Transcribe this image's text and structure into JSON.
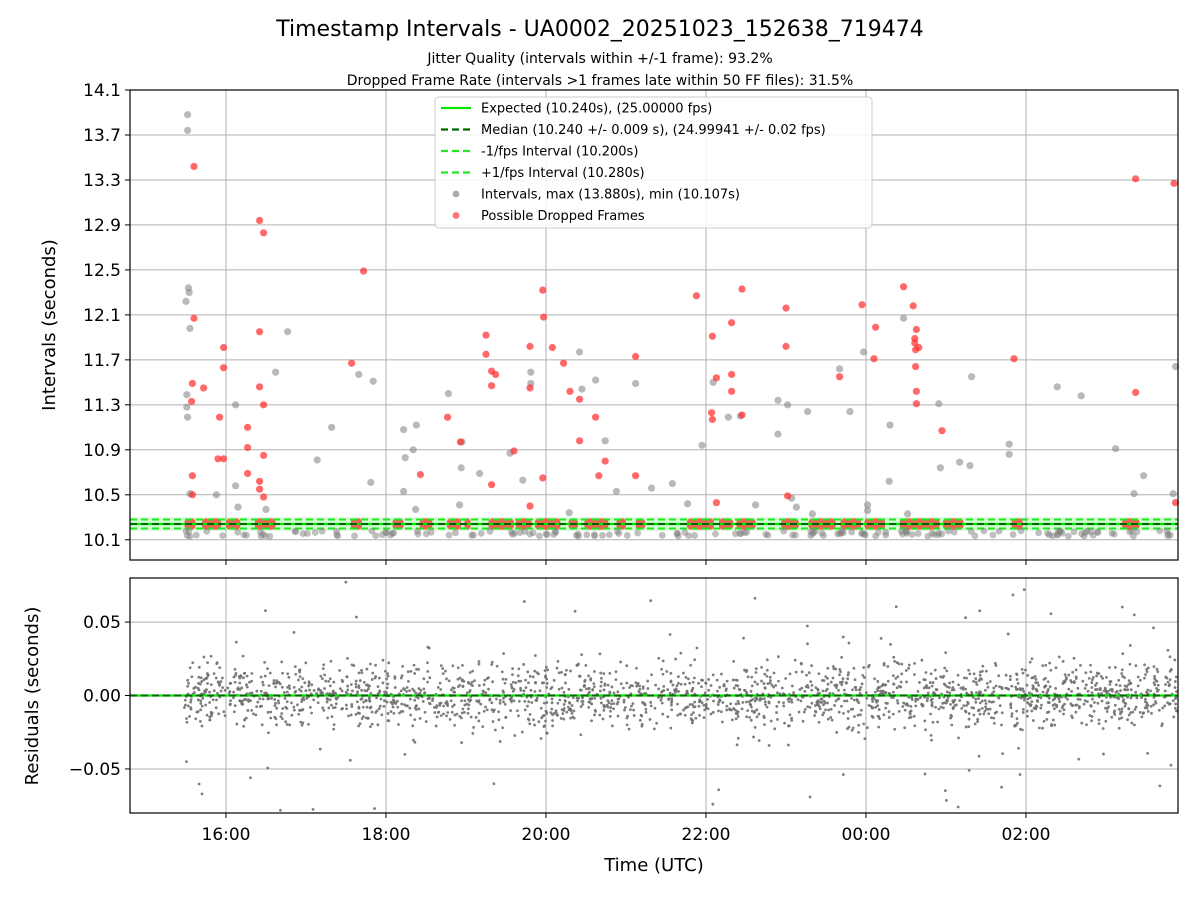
{
  "chart_data": [
    {
      "type": "scatter",
      "title": "Timestamp Intervals - UA0002_20251023_152638_719474",
      "subtitle_lines": [
        "Jitter Quality (intervals within +/-1 frame): 93.2%",
        "Dropped Frame Rate (intervals >1 frames late within 50 FF files): 31.5%"
      ],
      "ylabel": "Intervals (seconds)",
      "xlabel": "",
      "ylim": [
        9.92,
        14.1
      ],
      "xlim_hours": [
        14.8,
        27.9
      ],
      "yticks": [
        "10.1",
        "10.5",
        "10.9",
        "11.3",
        "11.7",
        "12.1",
        "12.5",
        "12.9",
        "13.3",
        "13.7",
        "14.1"
      ],
      "grid": true,
      "legend_position": "top-center",
      "legend": [
        {
          "label": "Expected (10.240s), (25.00000 fps)",
          "style": "solid",
          "color": "#00e600"
        },
        {
          "label": "Median (10.240 +/- 0.009 s), (24.99941 +/- 0.02 fps)",
          "style": "dashed",
          "color": "#006400"
        },
        {
          "label": "-1/fps Interval (10.200s)",
          "style": "dashed",
          "color": "#22e822"
        },
        {
          "label": "+1/fps Interval (10.280s)",
          "style": "dashed",
          "color": "#22e822"
        },
        {
          "label": "Intervals, max (13.880s), min (10.107s)",
          "style": "marker",
          "color": "#808080"
        },
        {
          "label": "Possible Dropped Frames",
          "style": "marker",
          "color": "#ff2a2a"
        }
      ],
      "reference_lines": {
        "expected": 10.24,
        "median": 10.24,
        "minus_one_fps": 10.2,
        "plus_one_fps": 10.28
      },
      "intervals_gray": [
        [
          15.52,
          13.88
        ],
        [
          15.52,
          13.74
        ],
        [
          15.53,
          12.34
        ],
        [
          15.54,
          12.3
        ],
        [
          15.5,
          12.22
        ],
        [
          15.55,
          11.98
        ],
        [
          15.51,
          11.39
        ],
        [
          15.51,
          11.28
        ],
        [
          15.52,
          11.19
        ],
        [
          15.55,
          10.51
        ],
        [
          15.88,
          10.5
        ],
        [
          16.12,
          10.58
        ],
        [
          16.12,
          11.3
        ],
        [
          16.15,
          10.39
        ],
        [
          16.5,
          10.37
        ],
        [
          16.62,
          11.59
        ],
        [
          16.77,
          11.95
        ],
        [
          17.14,
          10.81
        ],
        [
          17.32,
          11.1
        ],
        [
          17.66,
          11.57
        ],
        [
          17.84,
          11.51
        ],
        [
          17.81,
          10.61
        ],
        [
          18.22,
          11.08
        ],
        [
          18.24,
          10.83
        ],
        [
          18.34,
          10.9
        ],
        [
          18.38,
          11.12
        ],
        [
          18.22,
          10.53
        ],
        [
          18.37,
          10.37
        ],
        [
          18.78,
          11.4
        ],
        [
          18.94,
          10.74
        ],
        [
          18.92,
          10.41
        ],
        [
          18.95,
          10.97
        ],
        [
          19.17,
          10.69
        ],
        [
          19.55,
          10.87
        ],
        [
          19.71,
          10.63
        ],
        [
          19.81,
          11.49
        ],
        [
          19.81,
          11.59
        ],
        [
          20.29,
          10.34
        ],
        [
          20.42,
          11.77
        ],
        [
          20.45,
          11.44
        ],
        [
          20.62,
          11.52
        ],
        [
          20.74,
          10.98
        ],
        [
          20.88,
          10.53
        ],
        [
          21.12,
          11.49
        ],
        [
          21.32,
          10.56
        ],
        [
          21.58,
          10.6
        ],
        [
          21.77,
          10.42
        ],
        [
          21.95,
          10.94
        ],
        [
          22.09,
          11.5
        ],
        [
          22.28,
          11.19
        ],
        [
          22.43,
          11.2
        ],
        [
          22.62,
          10.41
        ],
        [
          22.9,
          11.04
        ],
        [
          22.9,
          11.34
        ],
        [
          23.02,
          11.3
        ],
        [
          23.07,
          10.47
        ],
        [
          23.13,
          10.39
        ],
        [
          23.27,
          11.24
        ],
        [
          23.33,
          10.33
        ],
        [
          23.67,
          11.62
        ],
        [
          23.8,
          11.24
        ],
        [
          24.02,
          10.41
        ],
        [
          24.02,
          10.36
        ],
        [
          23.97,
          11.77
        ],
        [
          24.3,
          11.12
        ],
        [
          24.29,
          10.62
        ],
        [
          24.47,
          12.07
        ],
        [
          24.52,
          10.33
        ],
        [
          24.91,
          11.31
        ],
        [
          24.93,
          10.74
        ],
        [
          25.17,
          10.79
        ],
        [
          25.3,
          10.76
        ],
        [
          25.32,
          11.55
        ],
        [
          25.79,
          10.95
        ],
        [
          25.79,
          10.86
        ],
        [
          26.39,
          11.46
        ],
        [
          26.69,
          11.38
        ],
        [
          27.12,
          10.91
        ],
        [
          27.35,
          10.51
        ],
        [
          27.47,
          10.67
        ],
        [
          27.84,
          10.51
        ],
        [
          27.87,
          11.64
        ]
      ],
      "dropped_red": [
        [
          15.6,
          13.42
        ],
        [
          15.6,
          12.07
        ],
        [
          15.58,
          11.49
        ],
        [
          15.57,
          11.33
        ],
        [
          15.58,
          10.67
        ],
        [
          15.58,
          10.5
        ],
        [
          15.72,
          11.45
        ],
        [
          15.92,
          11.19
        ],
        [
          15.97,
          11.81
        ],
        [
          15.97,
          11.63
        ],
        [
          15.97,
          10.82
        ],
        [
          15.9,
          10.82
        ],
        [
          16.27,
          11.1
        ],
        [
          16.27,
          10.92
        ],
        [
          16.27,
          10.69
        ],
        [
          16.42,
          12.94
        ],
        [
          16.47,
          12.83
        ],
        [
          16.42,
          11.95
        ],
        [
          16.42,
          11.46
        ],
        [
          16.47,
          11.3
        ],
        [
          16.42,
          10.62
        ],
        [
          16.42,
          10.55
        ],
        [
          16.47,
          10.85
        ],
        [
          16.47,
          10.48
        ],
        [
          17.72,
          12.49
        ],
        [
          17.57,
          11.67
        ],
        [
          18.43,
          10.68
        ],
        [
          18.77,
          11.19
        ],
        [
          18.93,
          10.97
        ],
        [
          19.25,
          11.92
        ],
        [
          19.25,
          11.75
        ],
        [
          19.32,
          11.6
        ],
        [
          19.37,
          11.57
        ],
        [
          19.32,
          11.47
        ],
        [
          19.32,
          10.59
        ],
        [
          19.6,
          10.89
        ],
        [
          19.8,
          11.82
        ],
        [
          19.8,
          11.45
        ],
        [
          19.8,
          10.4
        ],
        [
          19.96,
          12.32
        ],
        [
          19.97,
          12.08
        ],
        [
          19.96,
          10.65
        ],
        [
          20.08,
          11.81
        ],
        [
          20.22,
          11.67
        ],
        [
          20.3,
          11.42
        ],
        [
          20.42,
          11.35
        ],
        [
          20.42,
          10.98
        ],
        [
          20.62,
          11.19
        ],
        [
          20.66,
          10.67
        ],
        [
          20.74,
          10.8
        ],
        [
          21.12,
          11.73
        ],
        [
          21.12,
          10.67
        ],
        [
          21.88,
          12.27
        ],
        [
          22.08,
          11.91
        ],
        [
          22.07,
          11.23
        ],
        [
          22.08,
          11.17
        ],
        [
          22.13,
          11.54
        ],
        [
          22.13,
          10.43
        ],
        [
          22.32,
          12.03
        ],
        [
          22.32,
          11.57
        ],
        [
          22.32,
          11.42
        ],
        [
          22.45,
          12.33
        ],
        [
          22.45,
          11.21
        ],
        [
          23.0,
          12.16
        ],
        [
          23.0,
          11.82
        ],
        [
          23.02,
          10.49
        ],
        [
          23.67,
          11.55
        ],
        [
          23.95,
          12.19
        ],
        [
          24.12,
          11.99
        ],
        [
          24.1,
          11.71
        ],
        [
          24.47,
          12.35
        ],
        [
          24.59,
          12.18
        ],
        [
          24.63,
          11.97
        ],
        [
          24.61,
          11.89
        ],
        [
          24.61,
          11.85
        ],
        [
          24.66,
          11.81
        ],
        [
          24.62,
          11.79
        ],
        [
          24.62,
          11.64
        ],
        [
          24.63,
          11.42
        ],
        [
          24.63,
          11.31
        ],
        [
          24.95,
          11.07
        ],
        [
          25.85,
          11.71
        ],
        [
          27.37,
          13.31
        ],
        [
          27.37,
          11.41
        ],
        [
          27.85,
          13.27
        ],
        [
          27.87,
          10.43
        ]
      ],
      "band_segments_hours": [
        [
          15.48,
          15.62
        ],
        [
          15.7,
          15.94
        ],
        [
          16.0,
          16.18
        ],
        [
          16.36,
          16.62
        ],
        [
          17.56,
          17.7
        ],
        [
          18.08,
          18.22
        ],
        [
          18.42,
          18.58
        ],
        [
          18.76,
          18.94
        ],
        [
          18.98,
          19.06
        ],
        [
          19.28,
          19.6
        ],
        [
          19.62,
          19.82
        ],
        [
          19.86,
          20.18
        ],
        [
          20.28,
          20.4
        ],
        [
          20.48,
          20.78
        ],
        [
          20.88,
          21.0
        ],
        [
          21.12,
          21.24
        ],
        [
          21.76,
          22.1
        ],
        [
          22.16,
          22.34
        ],
        [
          22.38,
          22.62
        ],
        [
          22.94,
          23.16
        ],
        [
          23.28,
          23.62
        ],
        [
          23.68,
          23.94
        ],
        [
          23.98,
          24.24
        ],
        [
          24.42,
          24.92
        ],
        [
          24.96,
          25.22
        ],
        [
          25.82,
          25.96
        ],
        [
          27.2,
          27.42
        ]
      ],
      "bottom_panel": {
        "ylabel": "Residuals (seconds)",
        "xlabel": "Time (UTC)",
        "ylim": [
          -0.08,
          0.08
        ],
        "yticks": [
          "0.05",
          "0.00",
          "−0.05"
        ],
        "xticks": [
          "16:00",
          "18:00",
          "20:00",
          "22:00",
          "00:00",
          "02:00"
        ],
        "xtick_hours": [
          16,
          18,
          20,
          22,
          24,
          26
        ],
        "points": "dense gray residual scatter spanning 15:30 to 03:55, concentrated within about ±0.02 s with outliers to ±0.08 s",
        "zero_line": {
          "color": "#00e600",
          "median_color": "#006400"
        }
      }
    }
  ]
}
